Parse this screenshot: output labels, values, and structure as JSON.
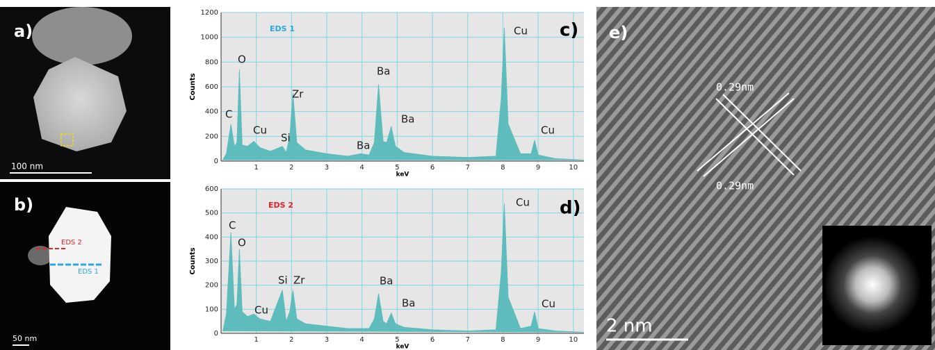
{
  "chart_data": [
    {
      "type": "area",
      "y_label": "Counts",
      "x_label": "keV",
      "panel_label": "c)",
      "x": [
        0.05,
        0.15,
        0.28,
        0.38,
        0.45,
        0.52,
        0.6,
        0.75,
        0.93,
        1.1,
        1.4,
        1.74,
        1.85,
        1.95,
        2.04,
        2.15,
        2.4,
        3.0,
        3.6,
        3.95,
        4.2,
        4.35,
        4.47,
        4.6,
        4.7,
        4.83,
        4.95,
        5.2,
        6.0,
        7.0,
        7.8,
        7.95,
        8.04,
        8.15,
        8.5,
        8.8,
        8.9,
        9.0,
        9.5,
        10.3
      ],
      "series": [
        {
          "name": "EDS 1",
          "color": "#29a8e0",
          "fill": "#5fbcbc",
          "values": [
            10,
            60,
            300,
            120,
            150,
            740,
            130,
            120,
            160,
            110,
            80,
            120,
            70,
            200,
            550,
            150,
            90,
            60,
            40,
            60,
            50,
            150,
            620,
            160,
            150,
            280,
            120,
            70,
            40,
            30,
            40,
            500,
            1080,
            300,
            60,
            60,
            170,
            50,
            20,
            10
          ]
        }
      ],
      "xlim": [
        0,
        10.3
      ],
      "xticks": [
        1,
        2,
        3,
        4,
        5,
        6,
        7,
        8,
        9,
        10
      ],
      "ylim": [
        0,
        1200
      ],
      "yticks": [
        0,
        200,
        400,
        600,
        800,
        1000,
        1200
      ],
      "grid": true,
      "annotations": [
        "C",
        "O",
        "Cu",
        "Si",
        "Zr",
        "Ba",
        "Ba",
        "Ba",
        "Cu",
        "Cu"
      ]
    },
    {
      "type": "area",
      "y_label": "Counts",
      "x_label": "keV",
      "panel_label": "d)",
      "x": [
        0.05,
        0.15,
        0.28,
        0.38,
        0.45,
        0.52,
        0.6,
        0.75,
        0.93,
        1.1,
        1.4,
        1.74,
        1.85,
        1.95,
        2.04,
        2.15,
        2.4,
        3.0,
        3.6,
        3.95,
        4.2,
        4.35,
        4.47,
        4.6,
        4.7,
        4.83,
        4.95,
        5.2,
        6.0,
        7.0,
        7.8,
        7.95,
        8.04,
        8.15,
        8.5,
        8.8,
        8.9,
        9.0,
        9.5,
        10.3
      ],
      "series": [
        {
          "name": "EDS 2",
          "color": "#e8202a",
          "fill": "#5fbcbc",
          "values": [
            10,
            80,
            420,
            100,
            120,
            350,
            90,
            70,
            80,
            60,
            50,
            180,
            50,
            90,
            180,
            60,
            40,
            30,
            20,
            20,
            20,
            60,
            165,
            50,
            40,
            85,
            40,
            25,
            15,
            10,
            15,
            250,
            540,
            150,
            20,
            30,
            90,
            20,
            10,
            5
          ]
        }
      ],
      "xlim": [
        0,
        10.3
      ],
      "xticks": [
        1,
        2,
        3,
        4,
        5,
        6,
        7,
        8,
        9,
        10
      ],
      "ylim": [
        0,
        600
      ],
      "yticks": [
        0,
        100,
        200,
        300,
        400,
        500,
        600
      ],
      "grid": true,
      "annotations": [
        "C",
        "O",
        "Cu",
        "Si",
        "Zr",
        "Ba",
        "Ba",
        "Cu",
        "Cu"
      ]
    }
  ],
  "panel_a": {
    "label": "a)",
    "scale_bar": "100 nm"
  },
  "panel_b": {
    "label": "b)",
    "line_red": "EDS 2",
    "line_blue": "EDS 1",
    "scale_bar": "50 nm"
  },
  "panel_e": {
    "label": "e)",
    "spacing_top": "0.29nm",
    "spacing_bottom": "0.29nm",
    "scale_bar": "2 nm"
  }
}
